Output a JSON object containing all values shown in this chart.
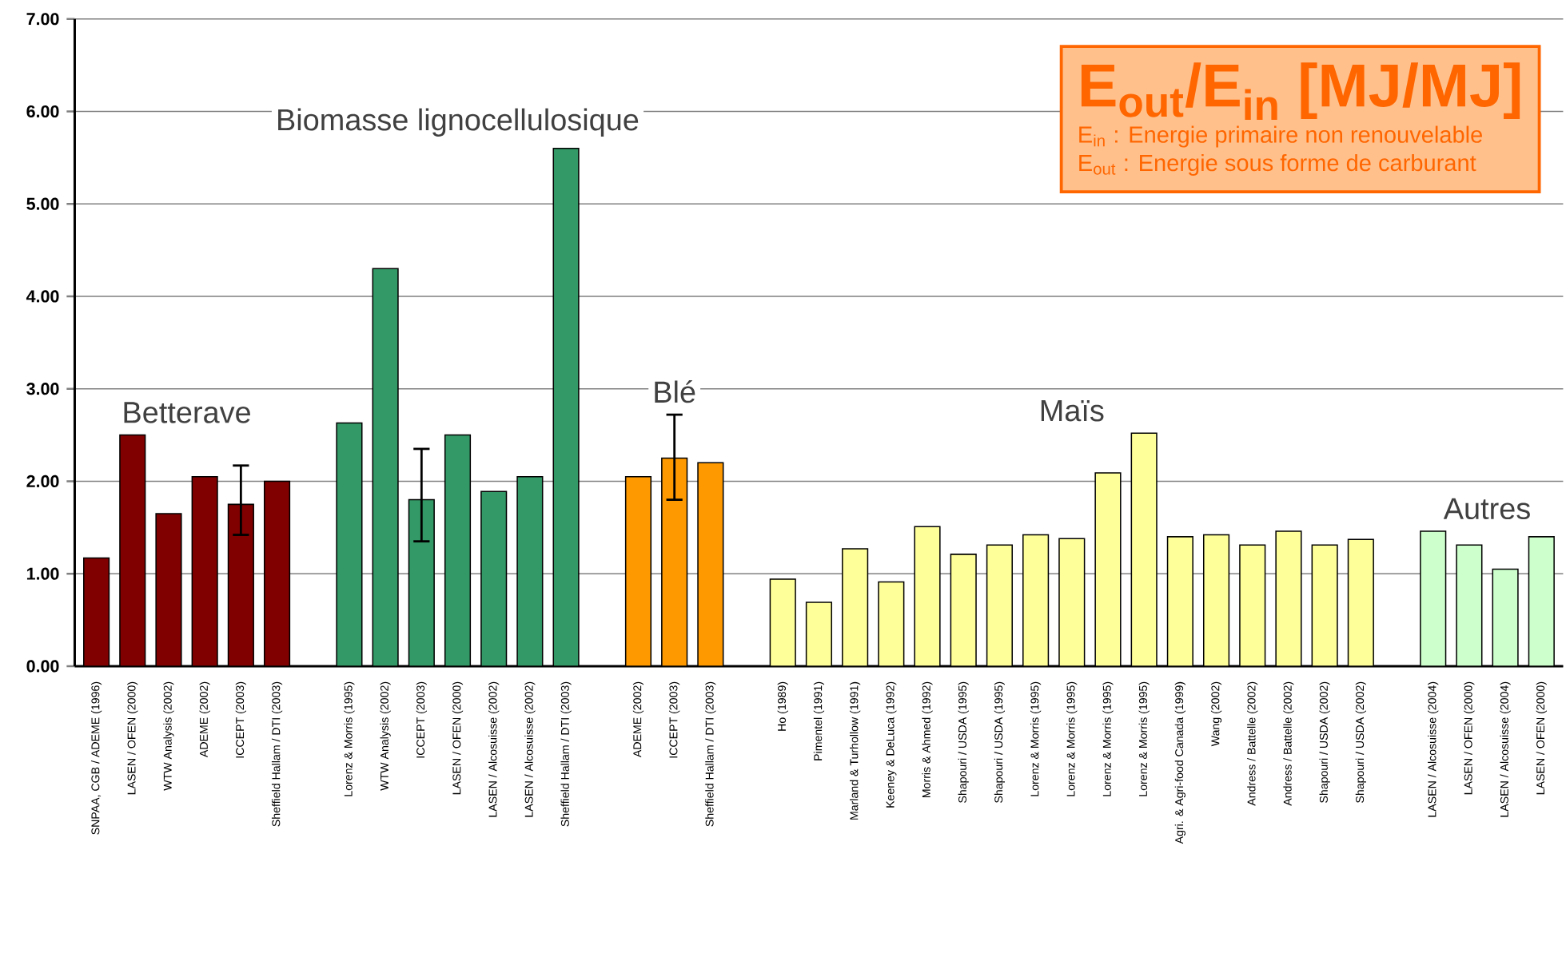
{
  "chart_data": {
    "type": "bar",
    "title": "**E$_{out}$/E$_{in}$ [MJ/MJ]**",
    "annotations": [
      "E$_{in}$ : Energie primaire non renouvelable",
      "E$_{out}$ : Energie sous forme de carburant"
    ],
    "categories": [
      "SNPAA, CGB / ADEME (1996)",
      "LASEN / OFEN (2000)",
      "WTW Analysis (2002)",
      "ADEME (2002)",
      "ICCEPT (2003)",
      "Sheffield Hallam / DTI (2003)",
      null,
      "Lorenz & Morris (1995)",
      "WTW Analysis (2002)",
      "ICCEPT (2003)",
      "LASEN / OFEN (2000)",
      "LASEN / Alcosuisse (2002)",
      "LASEN / Alcosuisse (2002)",
      "Sheffield Hallam / DTI (2003)",
      null,
      "ADEME (2002)",
      "ICCEPT (2003)",
      "Sheffield Hallam / DTI (2003)",
      null,
      "Ho (1989)",
      "Pimentel (1991)",
      "Marland & Turhollow (1991)",
      "Keeney & DeLuca (1992)",
      "Morris & Ahmed (1992)",
      "Shapouri / USDA (1995)",
      "Shapouri / USDA (1995)",
      "Lorenz & Morris (1995)",
      "Lorenz & Morris (1995)",
      "Lorenz & Morris (1995)",
      "Lorenz & Morris (1995)",
      "Agri. & Agri-food Canada (1999)",
      "Wang (2002)",
      "Andress / Battelle (2002)",
      "Andress / Battelle (2002)",
      "Shapouri / USDA (2002)",
      "Shapouri / USDA (2002)",
      null,
      "LASEN / Alcosuisse (2004)",
      "LASEN / OFEN (2000)",
      "LASEN / Alcosuisse (2004)",
      "LASEN / OFEN (2000)"
    ],
    "series": [
      {
        "name": "Betterave",
        "color": "#800000",
        "values": [
          1.17,
          2.5,
          1.65,
          2.05,
          1.75,
          2.0,
          null,
          null,
          null,
          null,
          null,
          null,
          null,
          null,
          null,
          null,
          null,
          null,
          null,
          null,
          null,
          null,
          null,
          null,
          null,
          null,
          null,
          null,
          null,
          null,
          null,
          null,
          null,
          null,
          null,
          null,
          null,
          null,
          null,
          null,
          null
        ],
        "errors": [
          null,
          null,
          null,
          null,
          [
            1.42,
            2.17
          ],
          null,
          null,
          null,
          null,
          null,
          null,
          null,
          null,
          null,
          null,
          null,
          null,
          null,
          null,
          null,
          null,
          null,
          null,
          null,
          null,
          null,
          null,
          null,
          null,
          null,
          null,
          null,
          null,
          null,
          null,
          null,
          null,
          null,
          null,
          null,
          null
        ]
      },
      {
        "name": "Biomasse lignocellulosique",
        "color": "#339966",
        "values": [
          null,
          null,
          null,
          null,
          null,
          null,
          null,
          2.63,
          4.3,
          1.8,
          2.5,
          1.89,
          2.05,
          5.6,
          null,
          null,
          null,
          null,
          null,
          null,
          null,
          null,
          null,
          null,
          null,
          null,
          null,
          null,
          null,
          null,
          null,
          null,
          null,
          null,
          null,
          null,
          null,
          null,
          null,
          null,
          null
        ],
        "errors": [
          null,
          null,
          null,
          null,
          null,
          null,
          null,
          null,
          null,
          [
            1.35,
            2.35
          ],
          null,
          null,
          null,
          null,
          null,
          null,
          null,
          null,
          null,
          null,
          null,
          null,
          null,
          null,
          null,
          null,
          null,
          null,
          null,
          null,
          null,
          null,
          null,
          null,
          null,
          null,
          null,
          null,
          null,
          null,
          null
        ]
      },
      {
        "name": "Blé",
        "color": "#FF9900",
        "values": [
          null,
          null,
          null,
          null,
          null,
          null,
          null,
          null,
          null,
          null,
          null,
          null,
          null,
          null,
          null,
          2.05,
          2.25,
          2.2,
          null,
          null,
          null,
          null,
          null,
          null,
          null,
          null,
          null,
          null,
          null,
          null,
          null,
          null,
          null,
          null,
          null,
          null,
          null,
          null,
          null,
          null,
          null
        ],
        "errors": [
          null,
          null,
          null,
          null,
          null,
          null,
          null,
          null,
          null,
          null,
          null,
          null,
          null,
          null,
          null,
          null,
          [
            1.8,
            2.72
          ],
          null,
          null,
          null,
          null,
          null,
          null,
          null,
          null,
          null,
          null,
          null,
          null,
          null,
          null,
          null,
          null,
          null,
          null,
          null,
          null,
          null,
          null,
          null,
          null
        ]
      },
      {
        "name": "Maïs",
        "color": "#FFFF99",
        "values": [
          null,
          null,
          null,
          null,
          null,
          null,
          null,
          null,
          null,
          null,
          null,
          null,
          null,
          null,
          null,
          null,
          null,
          null,
          null,
          0.94,
          0.69,
          1.27,
          0.91,
          1.51,
          1.21,
          1.31,
          1.42,
          1.38,
          2.09,
          2.52,
          1.4,
          1.42,
          1.31,
          1.46,
          1.31,
          1.37,
          null,
          null,
          null,
          null,
          null
        ]
      },
      {
        "name": "Autres",
        "color": "#CCFFCC",
        "values": [
          null,
          null,
          null,
          null,
          null,
          null,
          null,
          null,
          null,
          null,
          null,
          null,
          null,
          null,
          null,
          null,
          null,
          null,
          null,
          null,
          null,
          null,
          null,
          null,
          null,
          null,
          null,
          null,
          null,
          null,
          null,
          null,
          null,
          null,
          null,
          null,
          null,
          1.46,
          1.31,
          1.05,
          1.4
        ]
      }
    ],
    "ylim": [
      0,
      7
    ],
    "yticks": [
      {
        "value": 0,
        "label": "0.00"
      },
      {
        "value": 1,
        "label": "1.00"
      },
      {
        "value": 2,
        "label": "2.00"
      },
      {
        "value": 3,
        "label": "3.00"
      },
      {
        "value": 4,
        "label": "4.00"
      },
      {
        "value": 5,
        "label": "5.00"
      },
      {
        "value": 6,
        "label": "6.00"
      },
      {
        "value": 7,
        "label": "7.00"
      }
    ],
    "grid": "y"
  }
}
